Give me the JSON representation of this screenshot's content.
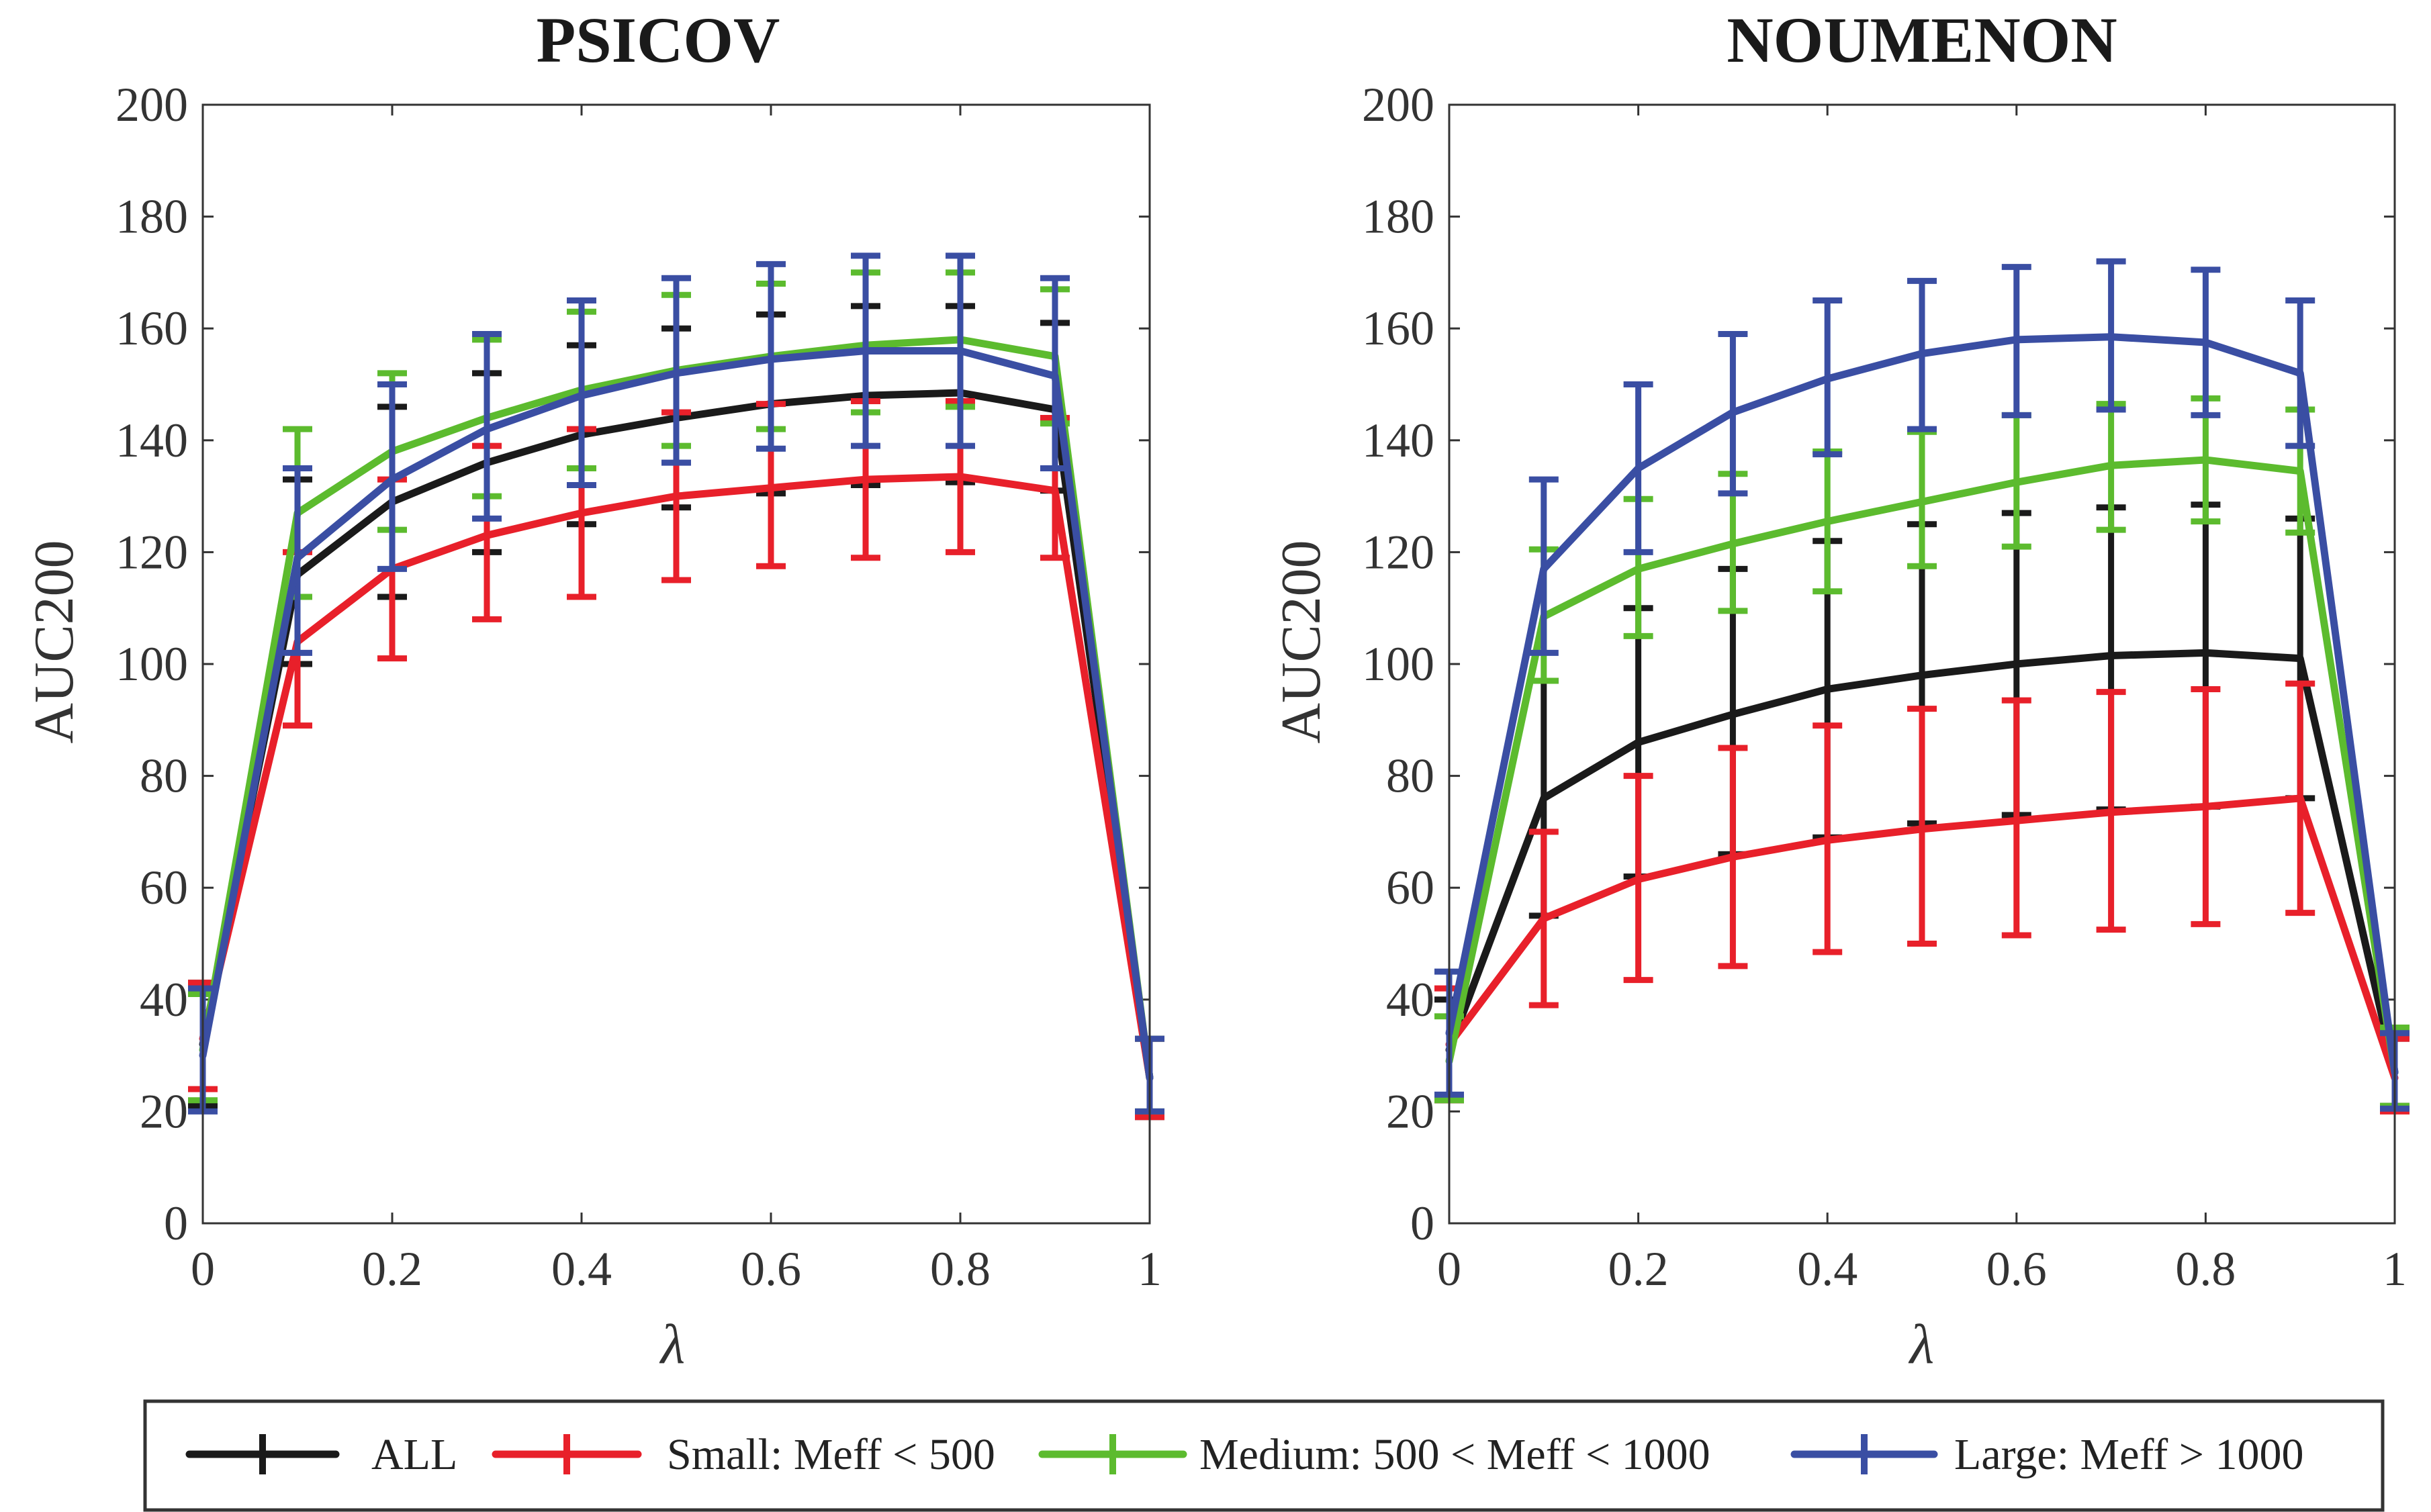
{
  "chart_data": [
    {
      "type": "line",
      "title": "PSICOV",
      "xlabel": "λ",
      "ylabel": "AUC200",
      "xlim": [
        0,
        1
      ],
      "ylim": [
        0,
        200
      ],
      "xticks": [
        0,
        0.2,
        0.4,
        0.6,
        0.8,
        1
      ],
      "xtick_labels": [
        "0",
        "0.2",
        "0.4",
        "0.6",
        "0.8",
        "1"
      ],
      "yticks": [
        0,
        20,
        40,
        60,
        80,
        100,
        120,
        140,
        160,
        180,
        200
      ],
      "ytick_labels": [
        "0",
        "20",
        "40",
        "60",
        "80",
        "100",
        "120",
        "140",
        "160",
        "180",
        "200"
      ],
      "x": [
        0,
        0.1,
        0.2,
        0.3,
        0.4,
        0.5,
        0.6,
        0.7,
        0.8,
        0.9,
        1
      ],
      "series": [
        {
          "name": "ALL",
          "color": "#1a1a1a",
          "values": [
            32,
            116,
            129,
            136,
            141,
            144,
            146.5,
            148,
            148.5,
            145.5,
            26
          ],
          "err_low": [
            21,
            100,
            112,
            120,
            125,
            128,
            130.5,
            132,
            132.5,
            131,
            19
          ],
          "err_high": [
            43,
            133,
            146,
            152,
            157,
            160,
            162.5,
            164,
            164,
            161,
            33
          ]
        },
        {
          "name": "Small: Meff < 500",
          "color": "#e8202a",
          "values": [
            33,
            104,
            117,
            123,
            127,
            130,
            131.5,
            133,
            133.5,
            131,
            26
          ],
          "err_low": [
            24,
            89,
            101,
            108,
            112,
            115,
            117.5,
            119,
            120,
            119,
            19
          ],
          "err_high": [
            43,
            120,
            133,
            139,
            142,
            145,
            146.5,
            147,
            147,
            144,
            33
          ]
        },
        {
          "name": "Medium: 500 < Meff < 1000",
          "color": "#5cbb2e",
          "values": [
            31,
            127,
            138,
            144,
            149,
            152.5,
            155,
            157,
            158,
            155,
            26
          ],
          "err_low": [
            22,
            112,
            124,
            130,
            135,
            139,
            142,
            145,
            146,
            143,
            20
          ],
          "err_high": [
            41,
            142,
            152,
            158,
            163,
            166,
            168,
            170,
            170,
            167,
            33
          ]
        },
        {
          "name": "Large: Meff > 1000",
          "color": "#3a4ea3",
          "values": [
            30,
            119,
            133,
            142,
            148,
            152,
            154.5,
            156,
            156,
            151.5,
            26
          ],
          "err_low": [
            20,
            102,
            117,
            126,
            132,
            136,
            138.5,
            139,
            139,
            135,
            20
          ],
          "err_high": [
            42,
            135,
            150,
            159,
            165,
            169,
            171.5,
            173,
            173,
            169,
            33
          ]
        }
      ]
    },
    {
      "type": "line",
      "title": "NOUMENON",
      "xlabel": "λ",
      "ylabel": "AUC200",
      "xlim": [
        0,
        1
      ],
      "ylim": [
        0,
        200
      ],
      "xticks": [
        0,
        0.2,
        0.4,
        0.6,
        0.8,
        1
      ],
      "xtick_labels": [
        "0",
        "0.2",
        "0.4",
        "0.6",
        "0.8",
        "1"
      ],
      "yticks": [
        0,
        20,
        40,
        60,
        80,
        100,
        120,
        140,
        160,
        180,
        200
      ],
      "ytick_labels": [
        "0",
        "20",
        "40",
        "60",
        "80",
        "100",
        "120",
        "140",
        "160",
        "180",
        "200"
      ],
      "x": [
        0,
        0.1,
        0.2,
        0.3,
        0.4,
        0.5,
        0.6,
        0.7,
        0.8,
        0.9,
        1
      ],
      "series": [
        {
          "name": "ALL",
          "color": "#1a1a1a",
          "values": [
            31,
            76,
            86,
            91,
            95.5,
            98,
            100,
            101.5,
            102,
            101,
            27
          ],
          "err_low": [
            22,
            55,
            62,
            66,
            69,
            71.5,
            73,
            74,
            74.5,
            76,
            21
          ],
          "err_high": [
            40,
            97,
            110,
            117,
            122,
            125,
            127,
            128,
            128.5,
            126,
            33
          ]
        },
        {
          "name": "Small: Meff < 500",
          "color": "#e8202a",
          "values": [
            32,
            54.5,
            61.5,
            65.5,
            68.5,
            70.5,
            72,
            73.5,
            74.5,
            76,
            26
          ],
          "err_low": [
            22,
            39,
            43.5,
            46,
            48.5,
            50,
            51.5,
            52.5,
            53.5,
            55.5,
            20
          ],
          "err_high": [
            42,
            70,
            80,
            85,
            89,
            92,
            93.5,
            95,
            95.5,
            96.5,
            33
          ]
        },
        {
          "name": "Medium: 500 < Meff < 1000",
          "color": "#5cbb2e",
          "values": [
            29,
            108.5,
            117,
            121.5,
            125.5,
            129,
            132.5,
            135.5,
            136.5,
            134.5,
            27
          ],
          "err_low": [
            22,
            97,
            105,
            109.5,
            113,
            117.5,
            121,
            124,
            125.5,
            123.5,
            21
          ],
          "err_high": [
            37,
            120.5,
            129.5,
            134,
            138,
            141.5,
            144.5,
            146.5,
            147.5,
            145.5,
            35
          ]
        },
        {
          "name": "Large: Meff > 1000",
          "color": "#3a4ea3",
          "values": [
            34,
            117,
            135,
            145,
            151,
            155.5,
            158,
            158.5,
            157.5,
            152,
            27
          ],
          "err_low": [
            23,
            102,
            120,
            130.5,
            137.5,
            142,
            144.5,
            145.5,
            144.5,
            139,
            20.5
          ],
          "err_high": [
            45,
            133,
            150,
            159,
            165,
            168.5,
            171,
            172,
            170.5,
            165,
            34
          ]
        }
      ]
    }
  ],
  "legend": {
    "position": "bottom",
    "items": [
      {
        "label": "ALL",
        "color": "#1a1a1a"
      },
      {
        "label": "Small: Meff < 500",
        "color": "#e8202a"
      },
      {
        "label": "Medium: 500 < Meff < 1000",
        "color": "#5cbb2e"
      },
      {
        "label": "Large: Meff > 1000",
        "color": "#3a4ea3"
      }
    ]
  }
}
